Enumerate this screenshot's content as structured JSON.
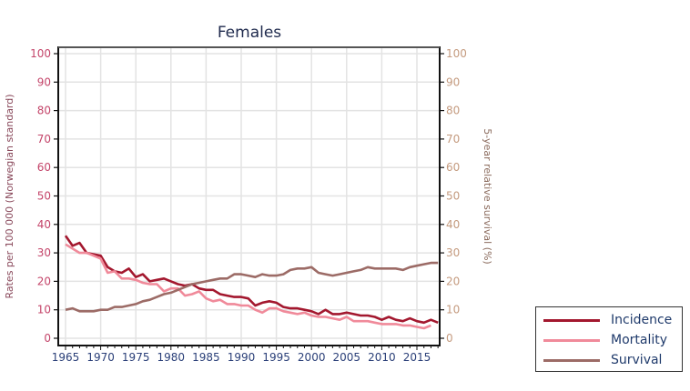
{
  "chart_data": {
    "type": "line",
    "title": "Females",
    "xlabel": "",
    "ylabel": "Rates per 100 000 (Norwegian standard)",
    "ylabel_right": "5-year relative survival (%)",
    "xlim": [
      1964,
      2019
    ],
    "ylim": [
      0,
      100
    ],
    "ylim_right": [
      0,
      100
    ],
    "grid": true,
    "legend_position": "bottom-right, outside plot",
    "x_ticks": [
      1965,
      1970,
      1975,
      1980,
      1985,
      1990,
      1995,
      2000,
      2005,
      2010,
      2015
    ],
    "y_ticks": [
      0,
      10,
      20,
      30,
      40,
      50,
      60,
      70,
      80,
      90,
      100
    ],
    "series": [
      {
        "name": "Incidence",
        "color": "#a3172e",
        "x": [
          1965,
          1966,
          1967,
          1968,
          1969,
          1970,
          1971,
          1972,
          1973,
          1974,
          1975,
          1976,
          1977,
          1978,
          1979,
          1980,
          1981,
          1982,
          1983,
          1984,
          1985,
          1986,
          1987,
          1988,
          1989,
          1990,
          1991,
          1992,
          1993,
          1994,
          1995,
          1996,
          1997,
          1998,
          1999,
          2000,
          2001,
          2002,
          2003,
          2004,
          2005,
          2006,
          2007,
          2008,
          2009,
          2010,
          2011,
          2012,
          2013,
          2014,
          2015,
          2016,
          2017,
          2018
        ],
        "values": [
          36,
          32.5,
          33.5,
          30,
          29.5,
          29,
          25,
          23.5,
          23,
          24.5,
          21.5,
          22.5,
          20,
          20.5,
          21,
          20,
          19,
          18.5,
          19,
          17.5,
          17,
          17,
          15.5,
          15,
          14.5,
          14.5,
          14,
          11.5,
          12.5,
          13,
          12.5,
          11,
          10.5,
          10.5,
          10,
          9.5,
          8.5,
          10,
          8.5,
          8.5,
          9,
          8.5,
          8,
          8,
          7.5,
          6.5,
          7.5,
          6.5,
          6,
          7,
          6,
          5.5,
          6.5,
          5.5
        ]
      },
      {
        "name": "Mortality",
        "color": "#f08a9a",
        "x": [
          1965,
          1966,
          1967,
          1968,
          1969,
          1970,
          1971,
          1972,
          1973,
          1974,
          1975,
          1976,
          1977,
          1978,
          1979,
          1980,
          1981,
          1982,
          1983,
          1984,
          1985,
          1986,
          1987,
          1988,
          1989,
          1990,
          1991,
          1992,
          1993,
          1994,
          1995,
          1996,
          1997,
          1998,
          1999,
          2000,
          2001,
          2002,
          2003,
          2004,
          2005,
          2006,
          2007,
          2008,
          2009,
          2010,
          2011,
          2012,
          2013,
          2014,
          2015,
          2016,
          2017
        ],
        "values": [
          33,
          31.5,
          30,
          30,
          29,
          28,
          23,
          23.5,
          21,
          21,
          20.5,
          19.5,
          19,
          19,
          16.5,
          17.5,
          17.5,
          15,
          15.5,
          16.5,
          14,
          13,
          13.5,
          12,
          12,
          11.5,
          11.5,
          10,
          9,
          10.5,
          10.5,
          9.5,
          9,
          8.5,
          9,
          8,
          7.5,
          7.5,
          7,
          6.5,
          7.5,
          6,
          6,
          6,
          5.5,
          5,
          5,
          5,
          4.5,
          4.5,
          4,
          3.5,
          4.5
        ]
      },
      {
        "name": "Survival",
        "color": "#9c6b66",
        "axis": "right",
        "x": [
          1965,
          1966,
          1967,
          1968,
          1969,
          1970,
          1971,
          1972,
          1973,
          1974,
          1975,
          1976,
          1977,
          1978,
          1979,
          1980,
          1981,
          1982,
          1983,
          1984,
          1985,
          1986,
          1987,
          1988,
          1989,
          1990,
          1991,
          1992,
          1993,
          1994,
          1995,
          1996,
          1997,
          1998,
          1999,
          2000,
          2001,
          2002,
          2003,
          2004,
          2005,
          2006,
          2007,
          2008,
          2009,
          2010,
          2011,
          2012,
          2013,
          2014,
          2015,
          2016,
          2017,
          2018
        ],
        "values": [
          10,
          10.5,
          9.5,
          9.5,
          9.5,
          10,
          10,
          11,
          11,
          11.5,
          12,
          13,
          13.5,
          14.5,
          15.5,
          16,
          17,
          18,
          19,
          19.5,
          20,
          20.5,
          21,
          21,
          22.5,
          22.5,
          22,
          21.5,
          22.5,
          22,
          22,
          22.5,
          24,
          24.5,
          24.5,
          25,
          23,
          22.5,
          22,
          22.5,
          23,
          23.5,
          24,
          25,
          24.5,
          24.5,
          24.5,
          24.5,
          24,
          25,
          25.5,
          26,
          26.5,
          26.5
        ]
      }
    ]
  },
  "legend": {
    "items": [
      {
        "label": "Incidence",
        "color": "#a3172e"
      },
      {
        "label": "Mortality",
        "color": "#f08a9a"
      },
      {
        "label": "Survival",
        "color": "#9c6b66"
      }
    ]
  },
  "colors": {
    "left_tick_label": "#c4456a",
    "right_tick_label": "#c49a7e",
    "x_tick_label": "#2a3f78",
    "axis": "#111111",
    "grid": "#e3e3e3",
    "title": "#1f2a4d"
  }
}
